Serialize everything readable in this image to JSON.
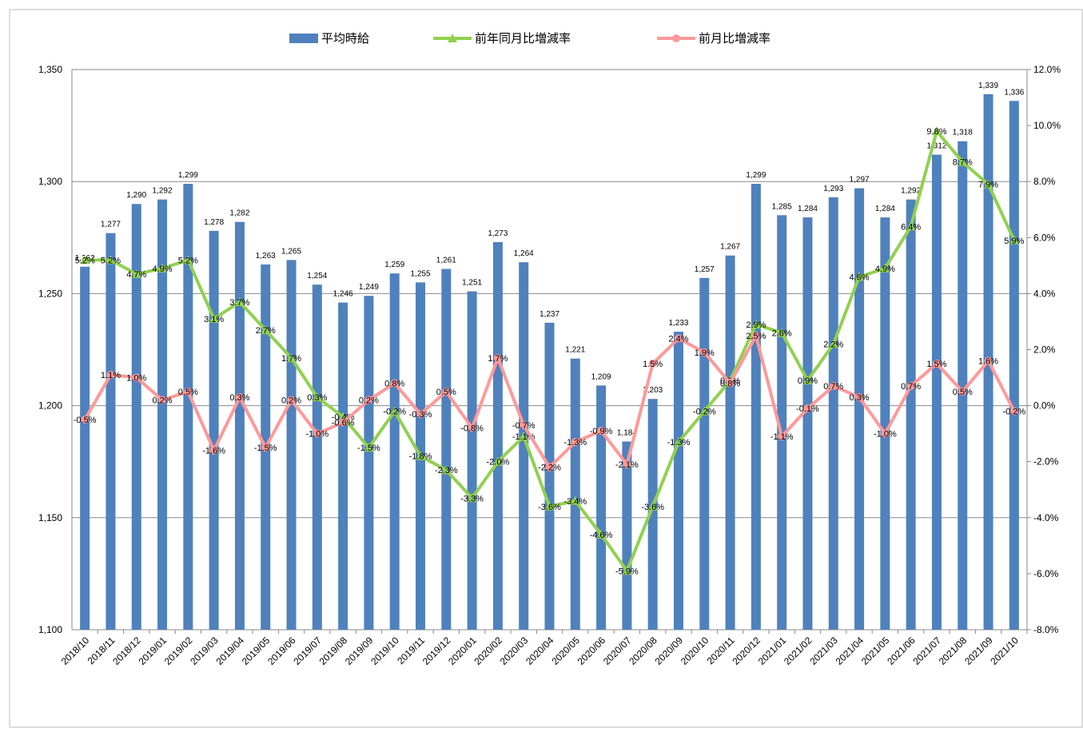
{
  "chart_data": {
    "type": "combo",
    "categories": [
      "2018/10",
      "2018/11",
      "2018/12",
      "2019/01",
      "2019/02",
      "2019/03",
      "2019/04",
      "2019/05",
      "2019/06",
      "2019/07",
      "2019/08",
      "2019/09",
      "2019/10",
      "2019/11",
      "2019/12",
      "2020/01",
      "2020/02",
      "2020/03",
      "2020/04",
      "2020/05",
      "2020/06",
      "2020/07",
      "2020/08",
      "2020/09",
      "2020/10",
      "2020/11",
      "2020/12",
      "2021/01",
      "2021/02",
      "2021/03",
      "2021/04",
      "2021/05",
      "2021/06",
      "2021/07",
      "2021/08",
      "2021/09",
      "2021/10"
    ],
    "ylim": [
      1100,
      1350
    ],
    "yticks": [
      {
        "value": 1100,
        "label": "1,100"
      },
      {
        "value": 1150,
        "label": "1,150"
      },
      {
        "value": 1200,
        "label": "1,200"
      },
      {
        "value": 1250,
        "label": "1,250"
      },
      {
        "value": 1300,
        "label": "1,300"
      },
      {
        "value": 1350,
        "label": "1,350"
      }
    ],
    "y2lim": [
      -8,
      12
    ],
    "y2ticks": [
      {
        "value": -8,
        "label": "-8.0%"
      },
      {
        "value": -6,
        "label": "-6.0%"
      },
      {
        "value": -4,
        "label": "-4.0%"
      },
      {
        "value": -2,
        "label": "-2.0%"
      },
      {
        "value": 0,
        "label": "0.0%"
      },
      {
        "value": 2,
        "label": "2.0%"
      },
      {
        "value": 4,
        "label": "4.0%"
      },
      {
        "value": 6,
        "label": "6.0%"
      },
      {
        "value": 8,
        "label": "8.0%"
      },
      {
        "value": 10,
        "label": "10.0%"
      },
      {
        "value": 12,
        "label": "12.0%"
      }
    ],
    "grid": true,
    "legend": "top",
    "series": [
      {
        "name": "平均時給",
        "type": "bar",
        "color": "#4f81bd",
        "values": [
          1262,
          1277,
          1290,
          1292,
          1299,
          1278,
          1282,
          1263,
          1265,
          1254,
          1246,
          1249,
          1259,
          1255,
          1261,
          1251,
          1273,
          1264,
          1237,
          1221,
          1209,
          1184,
          1203,
          1233,
          1257,
          1267,
          1299,
          1285,
          1284,
          1293,
          1297,
          1284,
          1292,
          1312,
          1318,
          1339,
          1336
        ],
        "value_labels": [
          "1,262",
          "1,277",
          "1,290",
          "1,292",
          "1,299",
          "1,278",
          "1,282",
          "1,263",
          "1,265",
          "1,254",
          "1,246",
          "1,249",
          "1,259",
          "1,255",
          "1,261",
          "1,251",
          "1,273",
          "1,264",
          "1,237",
          "1,221",
          "1,209",
          "1,184",
          "1,203",
          "1,233",
          "1,257",
          "1,267",
          "1,299",
          "1,285",
          "1,284",
          "1,293",
          "1,297",
          "1,284",
          "1,292",
          "1,312",
          "1,318",
          "1,339",
          "1,336"
        ]
      },
      {
        "name": "前年同月比増減率",
        "type": "line",
        "marker": "triangle",
        "axis": "y2",
        "color": "#92d050",
        "values": [
          5.2,
          5.2,
          4.7,
          4.9,
          5.2,
          3.1,
          3.7,
          2.7,
          1.7,
          0.3,
          -0.4,
          -1.5,
          -0.2,
          -1.8,
          -2.3,
          -3.3,
          -2.0,
          -1.1,
          -3.6,
          -3.4,
          -4.6,
          -5.9,
          -3.6,
          -1.3,
          -0.2,
          0.9,
          2.9,
          2.6,
          0.9,
          2.2,
          4.6,
          4.9,
          6.4,
          9.8,
          8.7,
          7.9,
          5.9
        ],
        "value_labels": [
          "5.2%",
          "5.2%",
          "4.7%",
          "4.9%",
          "5.2%",
          "3.1%",
          "3.7%",
          "2.7%",
          "1.7%",
          "0.3%",
          "-0.4%",
          "-1.5%",
          "-0.2%",
          "-1.8%",
          "-2.3%",
          "-3.3%",
          "-2.0%",
          "-1.1%",
          "-3.6%",
          "-3.4%",
          "-4.6%",
          "-5.9%",
          "-3.6%",
          "-1.3%",
          "-0.2%",
          "0.9%",
          "2.9%",
          "2.6%",
          "0.9%",
          "2.2%",
          "4.6%",
          "4.9%",
          "6.4%",
          "9.8%",
          "8.7%",
          "7.9%",
          "5.9%"
        ]
      },
      {
        "name": "前月比増減率",
        "type": "line",
        "marker": "circle",
        "axis": "y2",
        "color": "#ff9999",
        "values": [
          -0.5,
          1.1,
          1.0,
          0.2,
          0.5,
          -1.6,
          0.3,
          -1.5,
          0.2,
          -1.0,
          -0.6,
          0.2,
          0.8,
          -0.3,
          0.5,
          -0.8,
          1.7,
          -0.7,
          -2.2,
          -1.3,
          -0.9,
          -2.1,
          1.5,
          2.4,
          1.9,
          0.8,
          2.5,
          -1.1,
          -0.1,
          0.7,
          0.3,
          -1.0,
          0.7,
          1.5,
          0.5,
          1.6,
          -0.2
        ],
        "value_labels": [
          "-0.5%",
          "1.1%",
          "1.0%",
          "0.2%",
          "0.5%",
          "-1.6%",
          "0.3%",
          "-1.5%",
          "0.2%",
          "-1.0%",
          "-0.6%",
          "0.2%",
          "0.8%",
          "-0.3%",
          "0.5%",
          "-0.8%",
          "1.7%",
          "-0.7%",
          "-2.2%",
          "-1.3%",
          "-0.9%",
          "-2.1%",
          "1.5%",
          "2.4%",
          "1.9%",
          "0.8%",
          "2.5%",
          "-1.1%",
          "-0.1%",
          "0.7%",
          "0.3%",
          "-1.0%",
          "0.7%",
          "1.5%",
          "0.5%",
          "1.6%",
          "-0.2%"
        ]
      }
    ]
  }
}
